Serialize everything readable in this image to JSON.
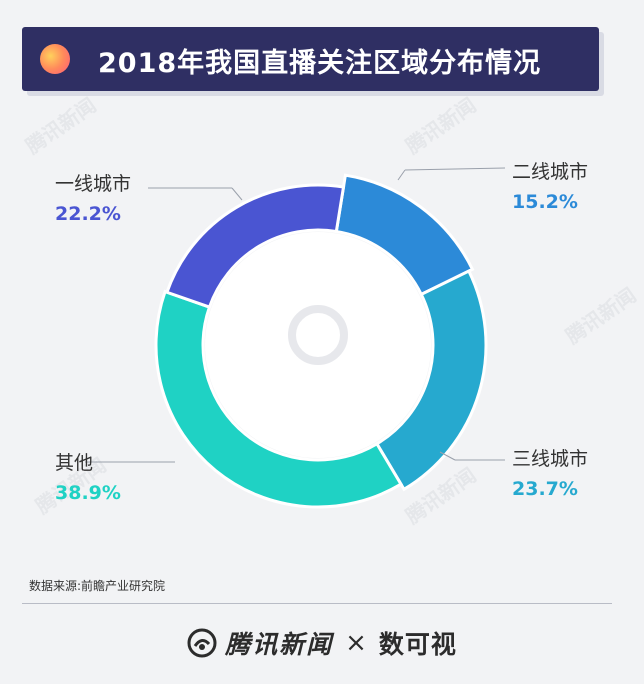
{
  "title": "2018年我国直播关注区域分布情况",
  "chart_data": {
    "type": "pie",
    "subtype": "donut",
    "title": "2018年我国直播关注区域分布情况",
    "categories": [
      "二线城市",
      "三线城市",
      "其他",
      "一线城市"
    ],
    "values": [
      15.2,
      23.7,
      38.9,
      22.2
    ],
    "value_labels": [
      "15.2%",
      "23.7%",
      "38.9%",
      "22.2%"
    ],
    "colors": [
      "#2c8ad8",
      "#26a9cf",
      "#1fd2c4",
      "#4a55d2"
    ]
  },
  "source": "数据来源:前瞻产业研究院",
  "footer": {
    "brand": "腾讯新闻",
    "times": "×",
    "partner": "数可视"
  },
  "watermark": "腾讯新闻"
}
